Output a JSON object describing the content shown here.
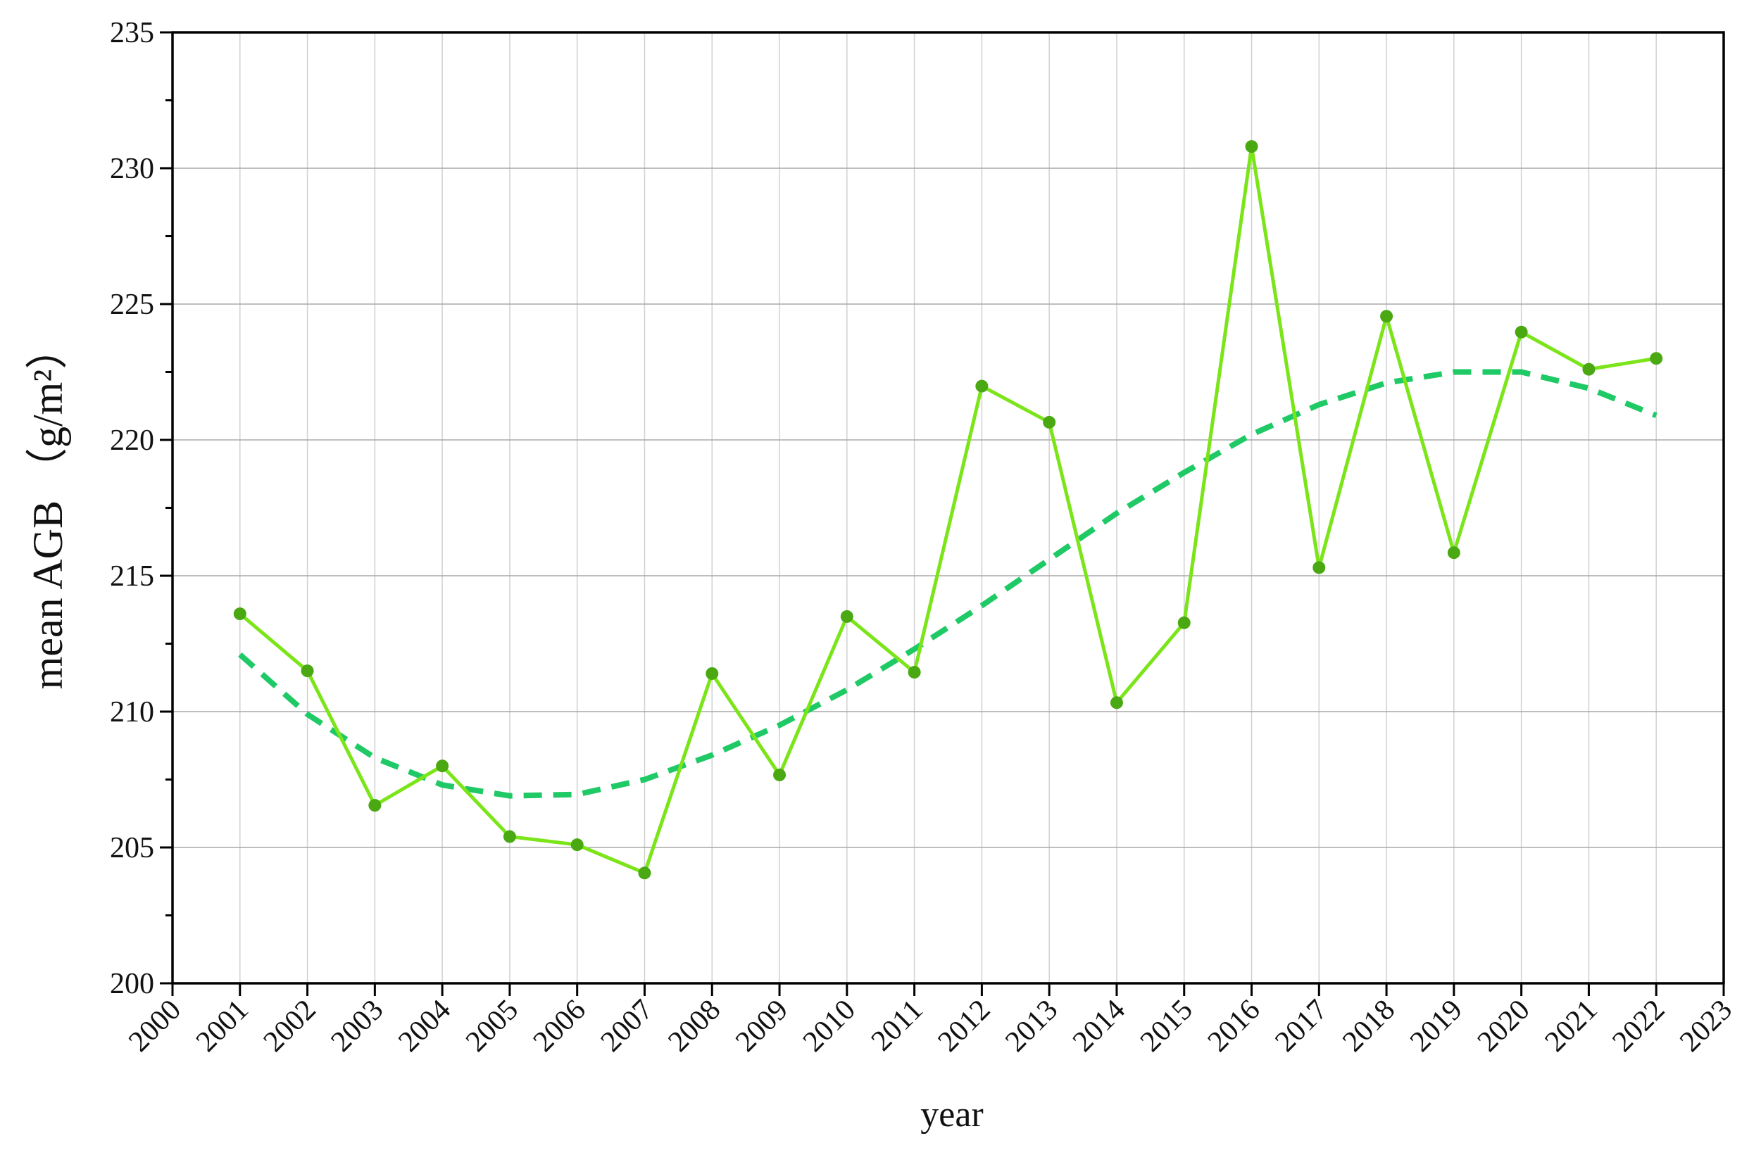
{
  "chart_data": {
    "type": "line",
    "xlabel": "year",
    "ylabel": "mean AGB （g/m²）",
    "x": [
      2001,
      2002,
      2003,
      2004,
      2005,
      2006,
      2007,
      2008,
      2009,
      2010,
      2011,
      2012,
      2013,
      2014,
      2015,
      2016,
      2017,
      2018,
      2019,
      2020,
      2021,
      2022
    ],
    "series": [
      {
        "color": "#7be51a",
        "marker_color": "#4aa812",
        "marker": true,
        "values": [
          213.6,
          211.5,
          206.55,
          208.0,
          205.4,
          205.1,
          204.06,
          211.4,
          207.67,
          213.5,
          211.45,
          221.98,
          220.65,
          210.33,
          213.27,
          230.8,
          215.3,
          224.55,
          215.85,
          223.97,
          222.6,
          223.0
        ]
      },
      {
        "color": "#1fca66",
        "dashed": true,
        "values": [
          212.1,
          209.9,
          208.3,
          207.3,
          206.9,
          206.95,
          207.5,
          208.4,
          209.5,
          210.8,
          212.3,
          213.9,
          215.6,
          217.3,
          218.8,
          220.2,
          221.3,
          222.1,
          222.5,
          222.5,
          221.9,
          220.9
        ]
      }
    ],
    "xlim": [
      2000,
      2023
    ],
    "xticks": [
      2000,
      2001,
      2002,
      2003,
      2004,
      2005,
      2006,
      2007,
      2008,
      2009,
      2010,
      2011,
      2012,
      2013,
      2014,
      2015,
      2016,
      2017,
      2018,
      2019,
      2020,
      2021,
      2022,
      2023
    ],
    "ylim": [
      200,
      235
    ],
    "yticks": [
      200,
      205,
      210,
      215,
      220,
      225,
      230,
      235
    ],
    "grid": true
  }
}
